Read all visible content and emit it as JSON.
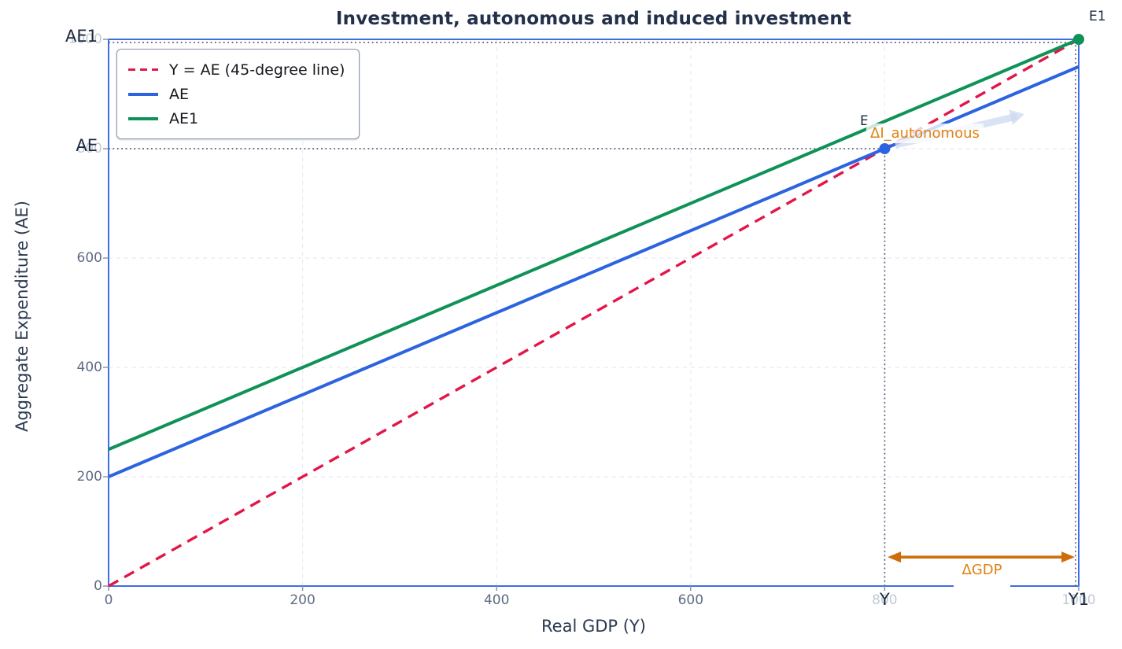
{
  "chart_data": {
    "type": "line",
    "title": "Investment, autonomous and induced investment",
    "xlabel": "Real GDP (Y)",
    "ylabel": "Aggregate Expenditure (AE)",
    "xlim": [
      0,
      1000
    ],
    "ylim": [
      0,
      1000
    ],
    "grid": true,
    "legend_position": "upper-left",
    "series": [
      {
        "name": "Y = AE (45-degree line)",
        "style": "dashed",
        "color": "#e31649",
        "x": [
          0,
          1000
        ],
        "y": [
          0,
          1000
        ]
      },
      {
        "name": "AE",
        "style": "solid",
        "color": "#2b63e0",
        "x": [
          0,
          1000
        ],
        "y": [
          200,
          950
        ]
      },
      {
        "name": "AE1",
        "style": "solid",
        "color": "#0f9257",
        "x": [
          0,
          1000
        ],
        "y": [
          250,
          1000
        ]
      }
    ],
    "points": [
      {
        "label": "E",
        "x": 800,
        "y": 800,
        "color": "#2b63e0"
      },
      {
        "label": "E1",
        "x": 1000,
        "y": 1000,
        "color": "#0f9257"
      }
    ],
    "xticks": [
      {
        "value": 0,
        "label": "0"
      },
      {
        "value": 200,
        "label": "200"
      },
      {
        "value": 400,
        "label": "400"
      },
      {
        "value": 600,
        "label": "600"
      },
      {
        "value": 800,
        "label": "800",
        "overlay": "Y"
      },
      {
        "value": 1000,
        "label": "1000",
        "overlay": "Y1"
      }
    ],
    "yticks": [
      {
        "value": 0,
        "label": "0"
      },
      {
        "value": 200,
        "label": "200"
      },
      {
        "value": 400,
        "label": "400"
      },
      {
        "value": 600,
        "label": "600"
      },
      {
        "value": 800,
        "label": "800",
        "overlay": "AE"
      },
      {
        "value": 1000,
        "label": "1000",
        "overlay": "AE1"
      }
    ],
    "guides": [
      {
        "axis": "h",
        "y": 800,
        "x0": 0,
        "x1": 800
      },
      {
        "axis": "v",
        "x": 800,
        "y0": 0,
        "y1": 800
      },
      {
        "axis": "h",
        "y": 1000,
        "x0": 0,
        "x1": 1000
      },
      {
        "axis": "v",
        "x": 1000,
        "y0": 0,
        "y1": 1000
      }
    ],
    "annotations": {
      "delta_i_label": {
        "text": "ΔI_autonomous",
        "color": "#e0820f"
      },
      "delta_gdp_label": {
        "text": "ΔGDP",
        "color": "#e0820f"
      },
      "gdp_arrow": {
        "x0": 803,
        "x1": 996,
        "y": 53,
        "color": "#cf6d0d"
      },
      "shift_arrow": {
        "x0": 811,
        "y0": 807,
        "x1": 936,
        "y1": 859,
        "color": "rgba(206,217,240,0.75)"
      }
    },
    "colors": {
      "spine": "#3e6ee2",
      "tick_label": "#5d6b84",
      "faint_tick": "#c3cad6",
      "overlay_tick": "#1c2a40",
      "grid": "#e9ebf0",
      "guide": "#51617c",
      "title": "#22304a",
      "axis_label": "#2c3950"
    }
  }
}
